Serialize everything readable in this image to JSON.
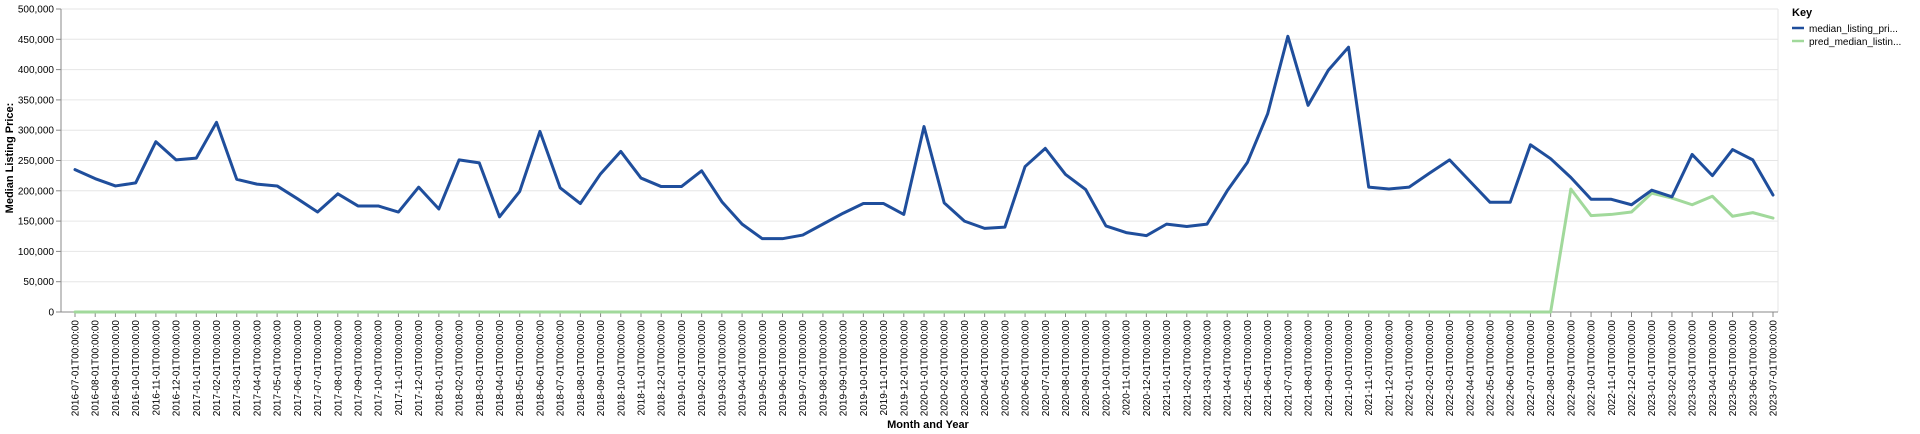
{
  "chart_data": {
    "type": "line",
    "xlabel": "Month and Year",
    "ylabel": "Median Listing Price:",
    "ylim": [
      0,
      500000
    ],
    "y_ticks": [
      "0",
      "50,000",
      "100,000",
      "150,000",
      "200,000",
      "250,000",
      "300,000",
      "350,000",
      "400,000",
      "450,000",
      "500,000"
    ],
    "grid": true,
    "legend": {
      "title": "Key",
      "placement": "right",
      "entries": [
        "median_listing_pri...",
        "pred_median_listin..."
      ]
    },
    "x": [
      "2016-07-01T00:00:00",
      "2016-08-01T00:00:00",
      "2016-09-01T00:00:00",
      "2016-10-01T00:00:00",
      "2016-11-01T00:00:00",
      "2016-12-01T00:00:00",
      "2017-01-01T00:00:00",
      "2017-02-01T00:00:00",
      "2017-03-01T00:00:00",
      "2017-04-01T00:00:00",
      "2017-05-01T00:00:00",
      "2017-06-01T00:00:00",
      "2017-07-01T00:00:00",
      "2017-08-01T00:00:00",
      "2017-09-01T00:00:00",
      "2017-10-01T00:00:00",
      "2017-11-01T00:00:00",
      "2017-12-01T00:00:00",
      "2018-01-01T00:00:00",
      "2018-02-01T00:00:00",
      "2018-03-01T00:00:00",
      "2018-04-01T00:00:00",
      "2018-05-01T00:00:00",
      "2018-06-01T00:00:00",
      "2018-07-01T00:00:00",
      "2018-08-01T00:00:00",
      "2018-09-01T00:00:00",
      "2018-10-01T00:00:00",
      "2018-11-01T00:00:00",
      "2018-12-01T00:00:00",
      "2019-01-01T00:00:00",
      "2019-02-01T00:00:00",
      "2019-03-01T00:00:00",
      "2019-04-01T00:00:00",
      "2019-05-01T00:00:00",
      "2019-06-01T00:00:00",
      "2019-07-01T00:00:00",
      "2019-08-01T00:00:00",
      "2019-09-01T00:00:00",
      "2019-10-01T00:00:00",
      "2019-11-01T00:00:00",
      "2019-12-01T00:00:00",
      "2020-01-01T00:00:00",
      "2020-02-01T00:00:00",
      "2020-03-01T00:00:00",
      "2020-04-01T00:00:00",
      "2020-05-01T00:00:00",
      "2020-06-01T00:00:00",
      "2020-07-01T00:00:00",
      "2020-08-01T00:00:00",
      "2020-09-01T00:00:00",
      "2020-10-01T00:00:00",
      "2020-11-01T00:00:00",
      "2020-12-01T00:00:00",
      "2021-01-01T00:00:00",
      "2021-02-01T00:00:00",
      "2021-03-01T00:00:00",
      "2021-04-01T00:00:00",
      "2021-05-01T00:00:00",
      "2021-06-01T00:00:00",
      "2021-07-01T00:00:00",
      "2021-08-01T00:00:00",
      "2021-09-01T00:00:00",
      "2021-10-01T00:00:00",
      "2021-11-01T00:00:00",
      "2021-12-01T00:00:00",
      "2022-01-01T00:00:00",
      "2022-02-01T00:00:00",
      "2022-03-01T00:00:00",
      "2022-04-01T00:00:00",
      "2022-05-01T00:00:00",
      "2022-06-01T00:00:00",
      "2022-07-01T00:00:00",
      "2022-08-01T00:00:00",
      "2022-09-01T00:00:00",
      "2022-10-01T00:00:00",
      "2022-11-01T00:00:00",
      "2022-12-01T00:00:00",
      "2023-01-01T00:00:00",
      "2023-02-01T00:00:00",
      "2023-03-01T00:00:00",
      "2023-04-01T00:00:00",
      "2023-05-01T00:00:00",
      "2023-06-01T00:00:00",
      "2023-07-01T00:00:00"
    ],
    "series": [
      {
        "name": "median_listing_pri...",
        "color": "#1f4e9c",
        "values": [
          235000,
          220000,
          208000,
          213000,
          281000,
          251000,
          254000,
          313000,
          219000,
          211000,
          208000,
          187000,
          165000,
          195000,
          175000,
          175000,
          165000,
          206000,
          170000,
          251000,
          246000,
          157000,
          199000,
          298000,
          205000,
          179000,
          228000,
          265000,
          221000,
          207000,
          207000,
          233000,
          182000,
          145000,
          121000,
          121000,
          127000,
          145000,
          163000,
          179000,
          179000,
          161000,
          306000,
          180000,
          150000,
          138000,
          140000,
          240000,
          270000,
          227000,
          202000,
          142000,
          131000,
          126000,
          145000,
          141000,
          145000,
          200000,
          247000,
          327000,
          455000,
          341000,
          399000,
          437000,
          206000,
          203000,
          206000,
          229000,
          251000,
          216000,
          181000,
          181000,
          276000,
          253000,
          222000,
          186000,
          186000,
          177000,
          201000,
          190000,
          260000,
          225000,
          268000,
          251000,
          193000
        ]
      },
      {
        "name": "pred_median_listin...",
        "color": "#a1d99b",
        "values": [
          0,
          0,
          0,
          0,
          0,
          0,
          0,
          0,
          0,
          0,
          0,
          0,
          0,
          0,
          0,
          0,
          0,
          0,
          0,
          0,
          0,
          0,
          0,
          0,
          0,
          0,
          0,
          0,
          0,
          0,
          0,
          0,
          0,
          0,
          0,
          0,
          0,
          0,
          0,
          0,
          0,
          0,
          0,
          0,
          0,
          0,
          0,
          0,
          0,
          0,
          0,
          0,
          0,
          0,
          0,
          0,
          0,
          0,
          0,
          0,
          0,
          0,
          0,
          0,
          0,
          0,
          0,
          0,
          0,
          0,
          0,
          0,
          0,
          0,
          203000,
          159000,
          161000,
          165000,
          196000,
          188000,
          177000,
          191000,
          158000,
          164000,
          155000
        ]
      }
    ]
  }
}
